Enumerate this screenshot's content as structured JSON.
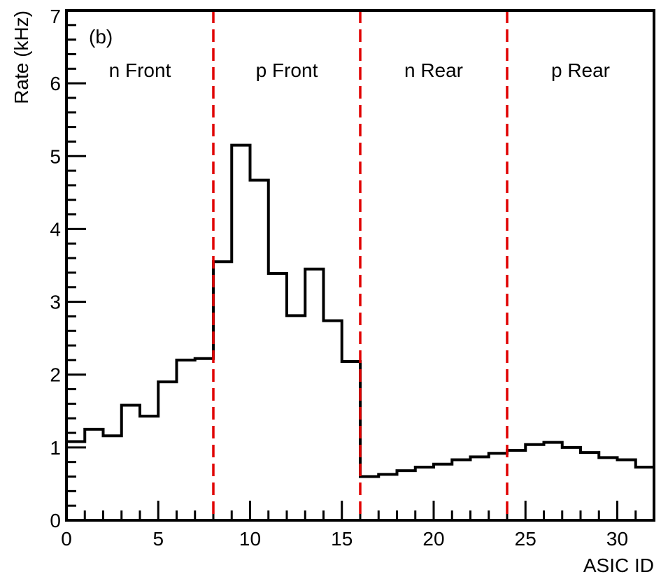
{
  "chart_data": {
    "type": "histogram",
    "panel_label": "(b)",
    "xlabel": "ASIC ID",
    "ylabel": "Rate (kHz)",
    "xlim": [
      0,
      32
    ],
    "ylim": [
      0,
      7
    ],
    "x_ticks": [
      "0",
      "5",
      "10",
      "15",
      "20",
      "25",
      "30"
    ],
    "y_ticks": [
      "0",
      "1",
      "2",
      "3",
      "4",
      "5",
      "6",
      "7"
    ],
    "bins": [
      0,
      1,
      2,
      3,
      4,
      5,
      6,
      7,
      8,
      9,
      10,
      11,
      12,
      13,
      14,
      15,
      16,
      17,
      18,
      19,
      20,
      21,
      22,
      23,
      24,
      25,
      26,
      27,
      28,
      29,
      30,
      31
    ],
    "values": [
      1.08,
      1.25,
      1.16,
      1.58,
      1.43,
      1.9,
      2.2,
      2.22,
      3.55,
      5.15,
      4.67,
      3.39,
      2.81,
      3.45,
      2.74,
      2.18,
      0.6,
      0.63,
      0.68,
      0.73,
      0.77,
      0.83,
      0.87,
      0.92,
      0.96,
      1.04,
      1.07,
      1.0,
      0.93,
      0.86,
      0.83,
      0.73
    ],
    "dividers": [
      8,
      16,
      24
    ],
    "regions": [
      {
        "label": "n Front",
        "x_center": 4
      },
      {
        "label": "p Front",
        "x_center": 12
      },
      {
        "label": "n Rear",
        "x_center": 20
      },
      {
        "label": "p Rear",
        "x_center": 28
      }
    ],
    "colors": {
      "line": "#000000",
      "divider": "#e00000"
    }
  }
}
